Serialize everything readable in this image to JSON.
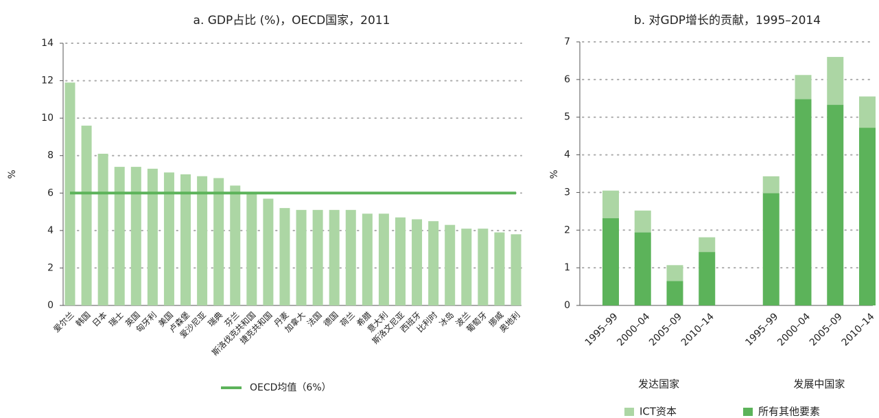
{
  "chart_data": [
    {
      "type": "bar",
      "title": "a. GDP占比 (%)，OECD国家，2011",
      "y_label": "%",
      "categories": [
        "爱尔兰",
        "韩国",
        "日本",
        "瑞士",
        "英国",
        "匈牙利",
        "美国",
        "卢森堡",
        "爱沙尼亚",
        "瑞典",
        "芬兰",
        "斯洛伐克共和国",
        "捷克共和国",
        "丹麦",
        "加拿大",
        "法国",
        "德国",
        "荷兰",
        "希腊",
        "意大利",
        "斯洛文尼亚",
        "西班牙",
        "比利时",
        "冰岛",
        "波兰",
        "葡萄牙",
        "挪威",
        "奥地利"
      ],
      "values": [
        11.9,
        9.6,
        8.1,
        7.4,
        7.4,
        7.3,
        7.1,
        7.0,
        6.9,
        6.8,
        6.4,
        6.0,
        5.7,
        5.2,
        5.1,
        5.1,
        5.1,
        5.1,
        4.9,
        4.9,
        4.7,
        4.6,
        4.5,
        4.3,
        4.1,
        4.1,
        3.9,
        3.8
      ],
      "color": "#acd6a4",
      "reference_line": {
        "name": "OECD均值（6%）",
        "value": 6,
        "color": "#5cb35a"
      },
      "ylim": [
        0,
        14
      ],
      "yticks": [
        0,
        2,
        4,
        6,
        8,
        10,
        12,
        14
      ],
      "grid": true
    },
    {
      "type": "stacked_bar",
      "title": "b. 对GDP增长的贡献，1995–2014",
      "y_label": "%",
      "categories": [
        "1995–99",
        "2000–04",
        "2005–09",
        "2010–14",
        null,
        "1995–99",
        "2000–04",
        "2005–09",
        "2010–14"
      ],
      "groups": [
        "发达国家",
        "发展中国家"
      ],
      "series": [
        {
          "name": "所有其他要素",
          "color": "#5cb35a",
          "values": [
            2.32,
            1.94,
            0.65,
            1.42,
            null,
            2.98,
            5.48,
            5.33,
            4.72
          ]
        },
        {
          "name": "ICT资本",
          "color": "#acd6a4",
          "values": [
            0.73,
            0.58,
            0.42,
            0.39,
            null,
            0.45,
            0.64,
            1.27,
            0.83
          ]
        }
      ],
      "ylim": [
        0,
        7
      ],
      "yticks": [
        0,
        1,
        2,
        3,
        4,
        5,
        6,
        7
      ],
      "grid": true
    }
  ]
}
